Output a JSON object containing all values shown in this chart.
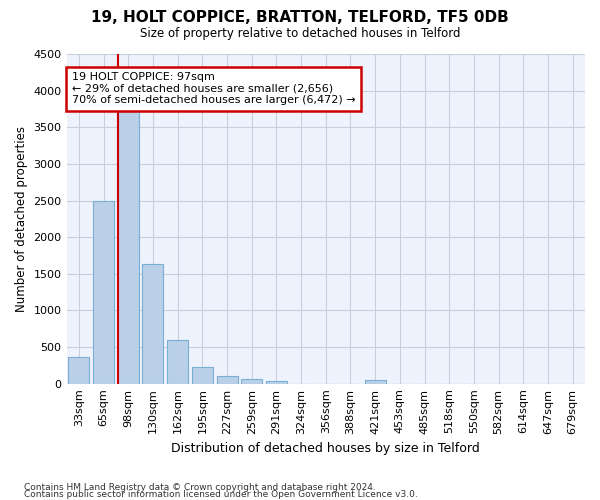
{
  "title": "19, HOLT COPPICE, BRATTON, TELFORD, TF5 0DB",
  "subtitle": "Size of property relative to detached houses in Telford",
  "xlabel": "Distribution of detached houses by size in Telford",
  "ylabel": "Number of detached properties",
  "categories": [
    "33sqm",
    "65sqm",
    "98sqm",
    "130sqm",
    "162sqm",
    "195sqm",
    "227sqm",
    "259sqm",
    "291sqm",
    "324sqm",
    "356sqm",
    "388sqm",
    "421sqm",
    "453sqm",
    "485sqm",
    "518sqm",
    "550sqm",
    "582sqm",
    "614sqm",
    "647sqm",
    "679sqm"
  ],
  "values": [
    370,
    2500,
    3750,
    1640,
    590,
    230,
    105,
    60,
    35,
    0,
    0,
    0,
    50,
    0,
    0,
    0,
    0,
    0,
    0,
    0,
    0
  ],
  "bar_color": "#bad0e8",
  "bar_edge_color": "#7aafd4",
  "highlight_bar_index": 2,
  "annotation_title": "19 HOLT COPPICE: 97sqm",
  "annotation_line1": "← 29% of detached houses are smaller (2,656)",
  "annotation_line2": "70% of semi-detached houses are larger (6,472) →",
  "annotation_box_color": "#cc0000",
  "ylim": [
    0,
    4500
  ],
  "yticks": [
    0,
    500,
    1000,
    1500,
    2000,
    2500,
    3000,
    3500,
    4000,
    4500
  ],
  "background_color": "#eef2fc",
  "grid_color": "#c8cede",
  "footer_line1": "Contains HM Land Registry data © Crown copyright and database right 2024.",
  "footer_line2": "Contains public sector information licensed under the Open Government Licence v3.0."
}
